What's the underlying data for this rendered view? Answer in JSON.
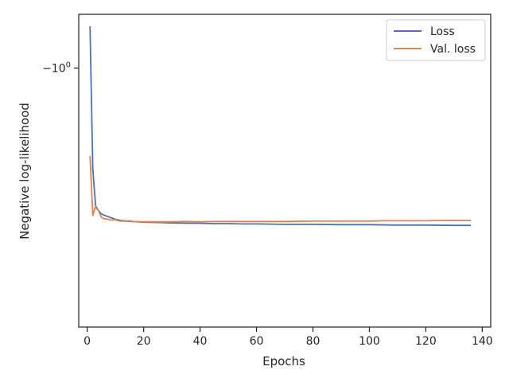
{
  "chart_data": {
    "type": "line",
    "title": "",
    "xlabel": "Epochs",
    "ylabel": "Negative log-likelihood",
    "xlim": [
      -3,
      143
    ],
    "ylim": [
      -0.1,
      -1.4
    ],
    "y_scale": "symlog",
    "grid": false,
    "legend_position": "top-right",
    "x_ticks": [
      {
        "value": 0,
        "label": "0"
      },
      {
        "value": 20,
        "label": "20"
      },
      {
        "value": 40,
        "label": "40"
      },
      {
        "value": 60,
        "label": "60"
      },
      {
        "value": 80,
        "label": "80"
      },
      {
        "value": 100,
        "label": "100"
      },
      {
        "value": 120,
        "label": "120"
      },
      {
        "value": 140,
        "label": "140"
      }
    ],
    "y_ticks": [
      {
        "value": -1.0,
        "label_base": "−10",
        "label_exp": "0"
      }
    ],
    "series": [
      {
        "name": "Loss",
        "color": "#4c72b0",
        "x": [
          1,
          2,
          3,
          4,
          5,
          6,
          7,
          8,
          9,
          10,
          12,
          14,
          16,
          18,
          20,
          25,
          30,
          35,
          40,
          45,
          50,
          55,
          60,
          70,
          80,
          90,
          100,
          110,
          120,
          130,
          136
        ],
        "y": [
          -1.3,
          -0.5,
          -0.37,
          -0.36,
          -0.35,
          -0.346,
          -0.343,
          -0.34,
          -0.337,
          -0.334,
          -0.331,
          -0.329,
          -0.328,
          -0.327,
          -0.326,
          -0.325,
          -0.324,
          -0.323,
          -0.323,
          -0.322,
          -0.322,
          -0.321,
          -0.321,
          -0.32,
          -0.32,
          -0.319,
          -0.319,
          -0.318,
          -0.318,
          -0.317,
          -0.317
        ]
      },
      {
        "name": "Val. loss",
        "color": "#dd8452",
        "x": [
          1,
          2,
          3,
          4,
          5,
          6,
          7,
          8,
          9,
          10,
          11,
          12,
          14,
          15,
          16,
          18,
          20,
          25,
          30,
          35,
          40,
          45,
          50,
          55,
          60,
          70,
          80,
          90,
          100,
          105,
          110,
          115,
          120,
          125,
          130,
          136
        ],
        "y": [
          -0.55,
          -0.345,
          -0.375,
          -0.36,
          -0.34,
          -0.336,
          -0.335,
          -0.333,
          -0.332,
          -0.333,
          -0.33,
          -0.329,
          -0.329,
          -0.33,
          -0.328,
          -0.327,
          -0.327,
          -0.327,
          -0.327,
          -0.328,
          -0.327,
          -0.328,
          -0.328,
          -0.328,
          -0.328,
          -0.328,
          -0.329,
          -0.329,
          -0.329,
          -0.33,
          -0.33,
          -0.33,
          -0.33,
          -0.331,
          -0.331,
          -0.331
        ]
      }
    ]
  }
}
